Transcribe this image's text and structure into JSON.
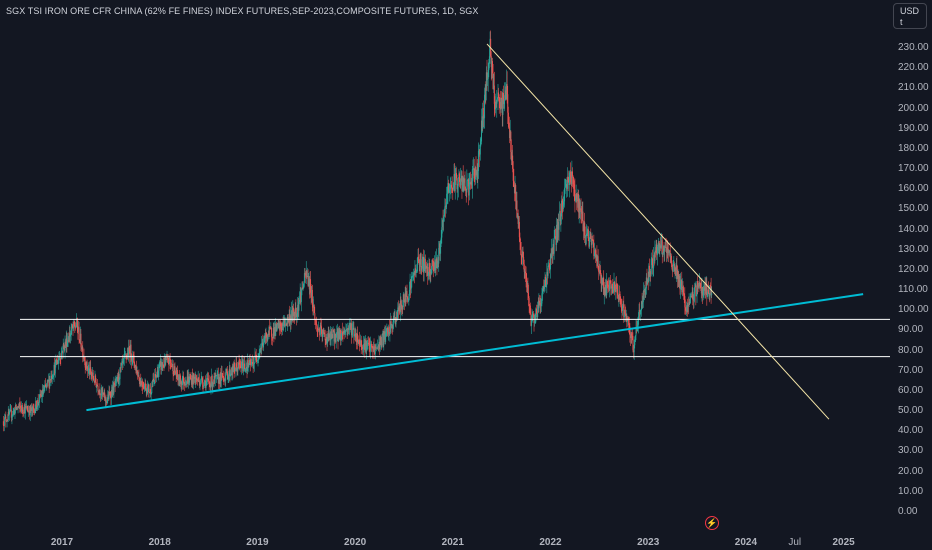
{
  "chart_title": "SGX TSI IRON ORE CFR CHINA (62% FE FINES) INDEX FUTURES,SEP-2023,COMPOSITE FUTURES, 1D, SGX",
  "currency_button_label": "USD\nt",
  "colors": {
    "background": "#131722",
    "up_candle": "#26a69a",
    "down_candle": "#ef5350",
    "support_line": "#00bcd4",
    "resistance_line": "#f5e6a8",
    "horizontal_line": "#ffffff",
    "axis_text": "#b2b5be",
    "lightning_icon": "#f23645"
  },
  "y_axis_ticks": [
    "230.00",
    "220.00",
    "210.00",
    "200.00",
    "190.00",
    "180.00",
    "170.00",
    "160.00",
    "150.00",
    "140.00",
    "130.00",
    "120.00",
    "110.00",
    "100.00",
    "90.00",
    "80.00",
    "70.00",
    "60.00",
    "50.00",
    "40.00",
    "30.00",
    "20.00",
    "10.00",
    "0.00"
  ],
  "x_axis_ticks": [
    {
      "label": "2017",
      "t": 2017.0,
      "major": true
    },
    {
      "label": "2018",
      "t": 2018.0,
      "major": true
    },
    {
      "label": "2019",
      "t": 2019.0,
      "major": true
    },
    {
      "label": "2020",
      "t": 2020.0,
      "major": true
    },
    {
      "label": "2021",
      "t": 2021.0,
      "major": true
    },
    {
      "label": "2022",
      "t": 2022.0,
      "major": true
    },
    {
      "label": "2023",
      "t": 2023.0,
      "major": true
    },
    {
      "label": "2024",
      "t": 2024.0,
      "major": true
    },
    {
      "label": "Jul",
      "t": 2024.5,
      "major": false
    },
    {
      "label": "2025",
      "t": 2025.0,
      "major": true
    }
  ],
  "chart_data": {
    "type": "candlestick",
    "ylim": [
      0,
      230
    ],
    "xlim_years": [
      2016.4,
      2025.2
    ],
    "price_path": [
      [
        2016.4,
        45
      ],
      [
        2016.55,
        52
      ],
      [
        2016.7,
        50
      ],
      [
        2016.85,
        63
      ],
      [
        2017.0,
        80
      ],
      [
        2017.1,
        90
      ],
      [
        2017.15,
        93
      ],
      [
        2017.25,
        72
      ],
      [
        2017.35,
        64
      ],
      [
        2017.45,
        55
      ],
      [
        2017.55,
        63
      ],
      [
        2017.65,
        77
      ],
      [
        2017.7,
        80
      ],
      [
        2017.8,
        65
      ],
      [
        2017.9,
        60
      ],
      [
        2018.0,
        72
      ],
      [
        2018.1,
        75
      ],
      [
        2018.2,
        65
      ],
      [
        2018.35,
        66
      ],
      [
        2018.5,
        64
      ],
      [
        2018.65,
        67
      ],
      [
        2018.8,
        72
      ],
      [
        2018.95,
        73
      ],
      [
        2019.1,
        88
      ],
      [
        2019.25,
        92
      ],
      [
        2019.4,
        100
      ],
      [
        2019.5,
        118
      ],
      [
        2019.55,
        110
      ],
      [
        2019.6,
        92
      ],
      [
        2019.7,
        86
      ],
      [
        2019.85,
        88
      ],
      [
        2019.95,
        92
      ],
      [
        2020.05,
        84
      ],
      [
        2020.2,
        80
      ],
      [
        2020.35,
        90
      ],
      [
        2020.45,
        100
      ],
      [
        2020.55,
        110
      ],
      [
        2020.65,
        125
      ],
      [
        2020.75,
        120
      ],
      [
        2020.85,
        125
      ],
      [
        2020.95,
        160
      ],
      [
        2021.05,
        165
      ],
      [
        2021.15,
        160
      ],
      [
        2021.25,
        170
      ],
      [
        2021.35,
        215
      ],
      [
        2021.38,
        232
      ],
      [
        2021.42,
        205
      ],
      [
        2021.5,
        200
      ],
      [
        2021.55,
        210
      ],
      [
        2021.6,
        175
      ],
      [
        2021.7,
        130
      ],
      [
        2021.75,
        115
      ],
      [
        2021.8,
        95
      ],
      [
        2021.85,
        98
      ],
      [
        2021.9,
        105
      ],
      [
        2021.95,
        115
      ],
      [
        2022.05,
        135
      ],
      [
        2022.15,
        160
      ],
      [
        2022.2,
        168
      ],
      [
        2022.3,
        150
      ],
      [
        2022.35,
        140
      ],
      [
        2022.45,
        130
      ],
      [
        2022.55,
        110
      ],
      [
        2022.65,
        112
      ],
      [
        2022.75,
        100
      ],
      [
        2022.85,
        82
      ],
      [
        2022.9,
        96
      ],
      [
        2023.0,
        118
      ],
      [
        2023.1,
        132
      ],
      [
        2023.2,
        128
      ],
      [
        2023.3,
        118
      ],
      [
        2023.4,
        100
      ],
      [
        2023.5,
        112
      ],
      [
        2023.6,
        110
      ],
      [
        2023.65,
        108
      ]
    ],
    "trendlines": [
      {
        "name": "support",
        "from": [
          2017.25,
          50.5
        ],
        "to": [
          2025.2,
          108
        ]
      },
      {
        "name": "resistance",
        "from": [
          2021.35,
          232
        ],
        "to": [
          2024.85,
          46
        ]
      }
    ],
    "horizontal_lines": [
      95.5,
      77
    ]
  }
}
